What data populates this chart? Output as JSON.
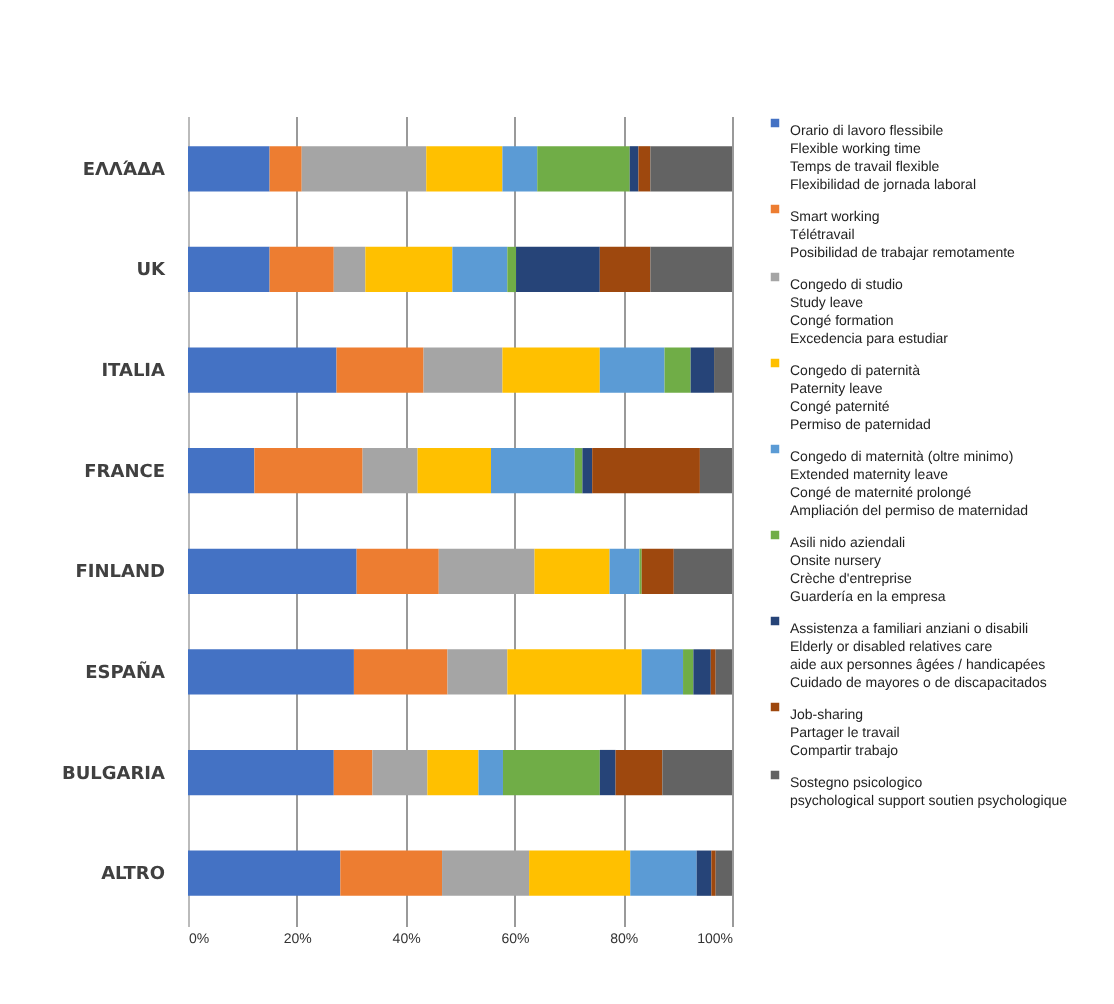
{
  "chart_data": {
    "type": "bar",
    "orientation": "horizontal",
    "stacked": true,
    "categories": [
      "ΕΛΛΆΔΑ",
      "UK",
      "ITALIA",
      "FRANCE",
      "FINLAND",
      "ESPAÑA",
      "BULGARIA",
      "ALTRO"
    ],
    "series": [
      {
        "name": "Orario di lavoro flessibile",
        "color": "#4472c4",
        "values": [
          15,
          15,
          27.3,
          12.2,
          31,
          30.5,
          26.8,
          28
        ]
      },
      {
        "name": "Smart working",
        "color": "#ed7d31",
        "values": [
          5.9,
          11.8,
          16,
          19.9,
          15.1,
          17.2,
          7.1,
          18.7
        ]
      },
      {
        "name": "Congedo di studio",
        "color": "#a5a5a5",
        "values": [
          22.9,
          5.8,
          14.5,
          10.1,
          17.6,
          11,
          10.1,
          16
        ]
      },
      {
        "name": "Congedo di paternità",
        "color": "#ffc000",
        "values": [
          14,
          16,
          17.9,
          13.5,
          13.8,
          24.7,
          9.4,
          18.6
        ]
      },
      {
        "name": "Congedo di maternità (oltre minimo)",
        "color": "#5b9bd5",
        "values": [
          6.4,
          10.1,
          11.9,
          15.4,
          5.5,
          7.6,
          4.5,
          12.2
        ]
      },
      {
        "name": "Asili nido aziendali",
        "color": "#70ad47",
        "values": [
          17,
          1.6,
          4.8,
          1.4,
          0.4,
          1.9,
          17.8,
          0
        ]
      },
      {
        "name": "Assistenza a familiari anziani o disabili",
        "color": "#264478",
        "values": [
          1.6,
          15.4,
          4.3,
          1.8,
          0,
          3.2,
          2.9,
          2.7
        ]
      },
      {
        "name": "Job-sharing",
        "color": "#9e480e",
        "values": [
          2.2,
          9.3,
          0,
          19.8,
          5.9,
          0.9,
          8.6,
          0.8
        ]
      },
      {
        "name": "Sostegno psicologico",
        "color": "#636363",
        "values": [
          15,
          15,
          3.3,
          5.9,
          10.7,
          3,
          12.8,
          3
        ]
      }
    ],
    "annotations": [
      "Flexible working time\nTemps de travail flexible\nFlexibilidad de jornada laboral",
      "Télétravail\nPosibilidad de trabajar remotamente",
      "Study leave\nCongé formation\nExcedencia para estudiar",
      "Paternity leave\nCongé paternité\nPermiso de paternidad",
      "Extended maternity leave\nCongé de maternité prolongé\nAmpliación del permiso de maternidad",
      "Onsite nursery\nCrèche d'entreprise\nGuardería en la empresa",
      "Elderly or disabled relatives care\naide aux personnes âgées / handicapées\nCuidado de mayores o de discapacitados",
      "Partager le travail\nCompartir trabajo",
      "psychological support soutien psychologique"
    ],
    "xlim": [
      0,
      100
    ],
    "xticks": [
      {
        "value": 0,
        "label": "0%"
      },
      {
        "value": 20,
        "label": "20%"
      },
      {
        "value": 40,
        "label": "40%"
      },
      {
        "value": 60,
        "label": "60%"
      },
      {
        "value": 80,
        "label": "80%"
      },
      {
        "value": 100,
        "label": "100%"
      }
    ],
    "grid": "x",
    "legend": "right"
  }
}
